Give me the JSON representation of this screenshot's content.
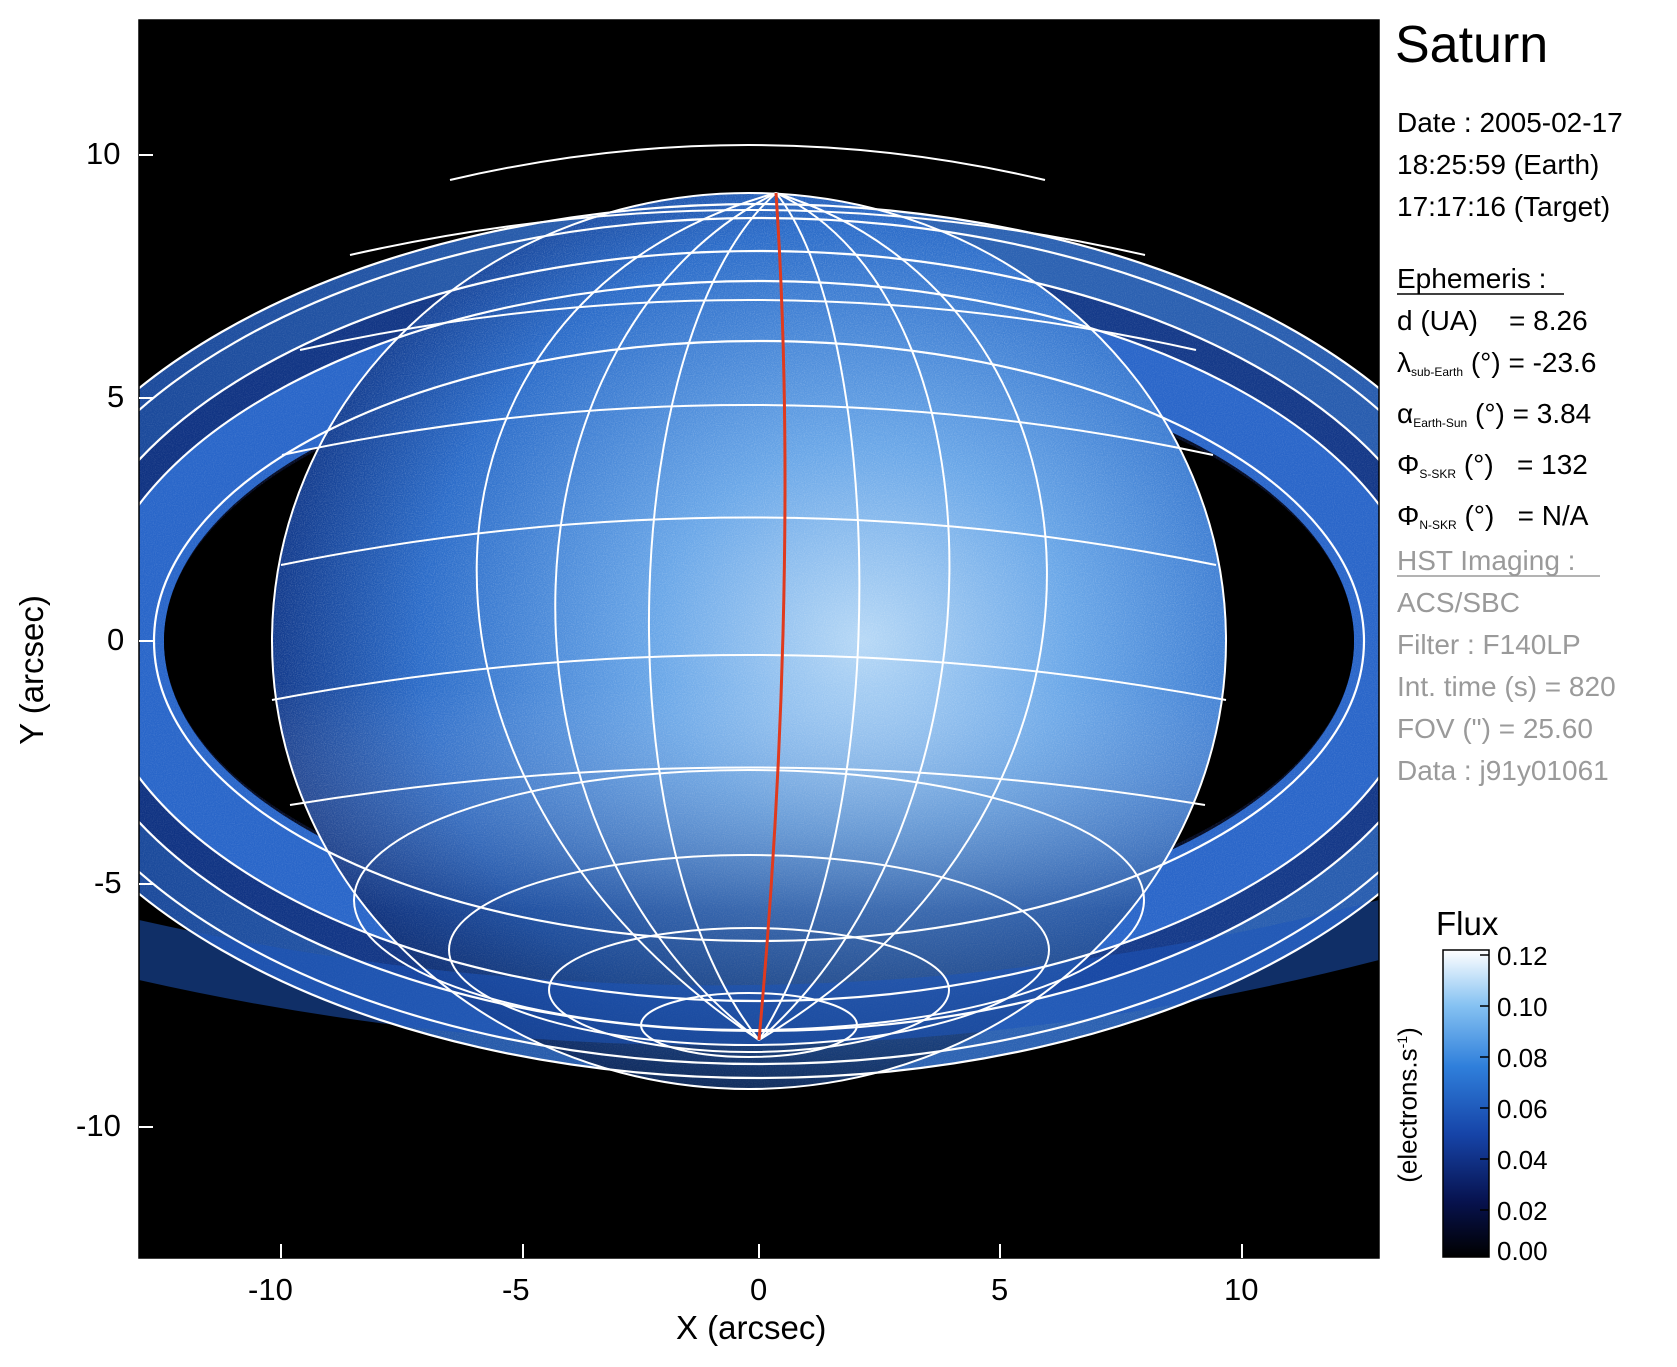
{
  "figure": {
    "title": "Saturn",
    "xlabel": "X (arcsec)",
    "ylabel": "Y (arcsec)",
    "x_ticks": [
      "-10",
      "-5",
      "0",
      "5",
      "10"
    ],
    "y_ticks": [
      "10",
      "5",
      "0",
      "-5",
      "-10"
    ],
    "x_range": [
      -12.8,
      12.8
    ],
    "y_range": [
      -12.8,
      12.8
    ]
  },
  "info": {
    "date": "Date : 2005-02-17",
    "time_earth": "18:25:59 (Earth)",
    "time_target": "17:17:16 (Target)",
    "ephemeris_header": "Ephemeris :",
    "ephemeris": {
      "d_label": "d (UA)",
      "d_value": "= 8.26",
      "lambda_symbol": "λ",
      "lambda_sub": "sub-Earth",
      "lambda_rest": "(°) = -23.6",
      "alpha_symbol": "α",
      "alpha_sub": "Earth-Sun",
      "alpha_rest": "(°) = 3.84",
      "phi_s_symbol": "Φ",
      "phi_s_sub": "S-SKR",
      "phi_s_rest": "(°)   = 132",
      "phi_n_symbol": "Φ",
      "phi_n_sub": "N-SKR",
      "phi_n_rest": "(°)   = N/A"
    },
    "hst_header": "HST Imaging :",
    "hst": {
      "instrument": "ACS/SBC",
      "filter": "Filter : F140LP",
      "int_time": "Int. time (s) = 820",
      "fov": "FOV (\") = 25.60",
      "data": "Data : j91y01061"
    }
  },
  "colorbar": {
    "title": "Flux",
    "unit": "(electrons.s",
    "unit_sup": "-1",
    "unit_end": ")",
    "ticks": [
      "0.12",
      "0.10",
      "0.08",
      "0.06",
      "0.04",
      "0.02",
      "0.00"
    ],
    "range": [
      0.0,
      0.12
    ],
    "colors": [
      "#000000",
      "#0a1a6e",
      "#1646b4",
      "#3c8ce6",
      "#8cc8f5",
      "#ffffff"
    ]
  },
  "colors": {
    "background": "#000000",
    "grid": "#ffffff",
    "meridian": "#e03a1e"
  }
}
